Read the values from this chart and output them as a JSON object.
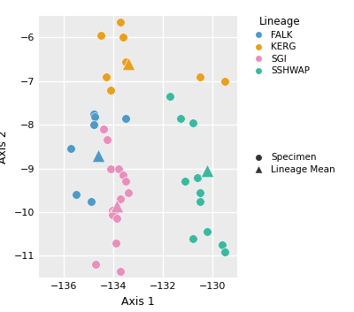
{
  "title": "",
  "xlabel": "Axis 1",
  "ylabel": "Axis 2",
  "xlim": [
    -137,
    -129
  ],
  "ylim": [
    -11.5,
    -5.5
  ],
  "xticks": [
    -136,
    -134,
    -132,
    -130
  ],
  "yticks": [
    -11,
    -10,
    -9,
    -8,
    -7,
    -6
  ],
  "background_color": "#EBEBEB",
  "grid_color": "#FFFFFF",
  "lineages": {
    "FALK": {
      "color": "#4E9AC7",
      "specimens": [
        [
          -135.7,
          -8.55
        ],
        [
          -134.8,
          -7.75
        ],
        [
          -134.75,
          -7.82
        ],
        [
          -134.8,
          -8.0
        ],
        [
          -133.5,
          -7.85
        ],
        [
          -135.5,
          -9.6
        ],
        [
          -134.9,
          -9.75
        ]
      ],
      "mean": [
        -134.6,
        -8.7
      ]
    },
    "KERG": {
      "color": "#E8A020",
      "specimens": [
        [
          -133.7,
          -5.65
        ],
        [
          -134.5,
          -5.95
        ],
        [
          -133.6,
          -6.0
        ],
        [
          -134.3,
          -6.9
        ],
        [
          -134.1,
          -7.2
        ],
        [
          -133.5,
          -6.55
        ],
        [
          -130.5,
          -6.9
        ],
        [
          -129.5,
          -7.0
        ]
      ],
      "mean": [
        -133.4,
        -6.6
      ]
    },
    "SGI": {
      "color": "#E88FBB",
      "specimens": [
        [
          -134.4,
          -8.1
        ],
        [
          -134.25,
          -8.35
        ],
        [
          -134.1,
          -9.0
        ],
        [
          -133.8,
          -9.0
        ],
        [
          -133.6,
          -9.15
        ],
        [
          -133.5,
          -9.3
        ],
        [
          -133.4,
          -9.55
        ],
        [
          -133.7,
          -9.7
        ],
        [
          -134.05,
          -9.95
        ],
        [
          -133.95,
          -10.0
        ],
        [
          -134.05,
          -10.05
        ],
        [
          -133.85,
          -10.15
        ],
        [
          -133.9,
          -10.7
        ],
        [
          -134.7,
          -11.2
        ],
        [
          -133.7,
          -11.35
        ]
      ],
      "mean": [
        -133.85,
        -9.85
      ]
    },
    "SSHWAP": {
      "color": "#3BB8A0",
      "specimens": [
        [
          -131.7,
          -7.35
        ],
        [
          -131.3,
          -7.85
        ],
        [
          -130.8,
          -7.95
        ],
        [
          -130.6,
          -9.2
        ],
        [
          -131.1,
          -9.3
        ],
        [
          -130.5,
          -9.55
        ],
        [
          -130.5,
          -9.75
        ],
        [
          -130.2,
          -10.45
        ],
        [
          -130.8,
          -10.6
        ],
        [
          -129.6,
          -10.75
        ],
        [
          -129.5,
          -10.9
        ]
      ],
      "mean": [
        -130.2,
        -9.05
      ]
    }
  },
  "legend_title": "Lineage",
  "specimen_label": "Specimen",
  "mean_label": "Lineage Mean",
  "marker_size_specimen": 48,
  "marker_size_mean": 110,
  "fig_width": 4.0,
  "fig_height": 3.53,
  "dpi": 100
}
